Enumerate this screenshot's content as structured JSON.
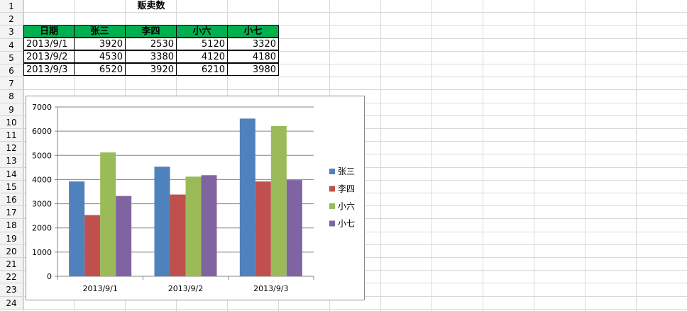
{
  "sheet": {
    "row_numbers": [
      "1",
      "2",
      "3",
      "4",
      "5",
      "6",
      "7",
      "8",
      "9",
      "10",
      "11",
      "12",
      "13",
      "14",
      "15",
      "16",
      "17",
      "18",
      "19",
      "20",
      "21",
      "22",
      "23",
      "24"
    ],
    "title": "贩卖数",
    "headers": [
      "日期",
      "张三",
      "李四",
      "小六",
      "小七"
    ],
    "rows": [
      [
        "2013/9/1",
        "3920",
        "2530",
        "5120",
        "3320"
      ],
      [
        "2013/9/2",
        "4530",
        "3380",
        "4120",
        "4180"
      ],
      [
        "2013/9/3",
        "6520",
        "3920",
        "6210",
        "3980"
      ]
    ],
    "header_color": "#00b050"
  },
  "chart_data": {
    "type": "bar",
    "categories": [
      "2013/9/1",
      "2013/9/2",
      "2013/9/3"
    ],
    "series": [
      {
        "name": "张三",
        "values": [
          3920,
          4530,
          6520
        ],
        "color": "#4f81bd"
      },
      {
        "name": "李四",
        "values": [
          2530,
          3380,
          3920
        ],
        "color": "#c0504d"
      },
      {
        "name": "小六",
        "values": [
          5120,
          4120,
          6210
        ],
        "color": "#9bbb59"
      },
      {
        "name": "小七",
        "values": [
          3320,
          4180,
          3980
        ],
        "color": "#8064a2"
      }
    ],
    "yticks": [
      "0",
      "1000",
      "2000",
      "3000",
      "4000",
      "5000",
      "6000",
      "7000"
    ],
    "ylim": [
      0,
      7000
    ],
    "grid": true,
    "legend": "right"
  }
}
